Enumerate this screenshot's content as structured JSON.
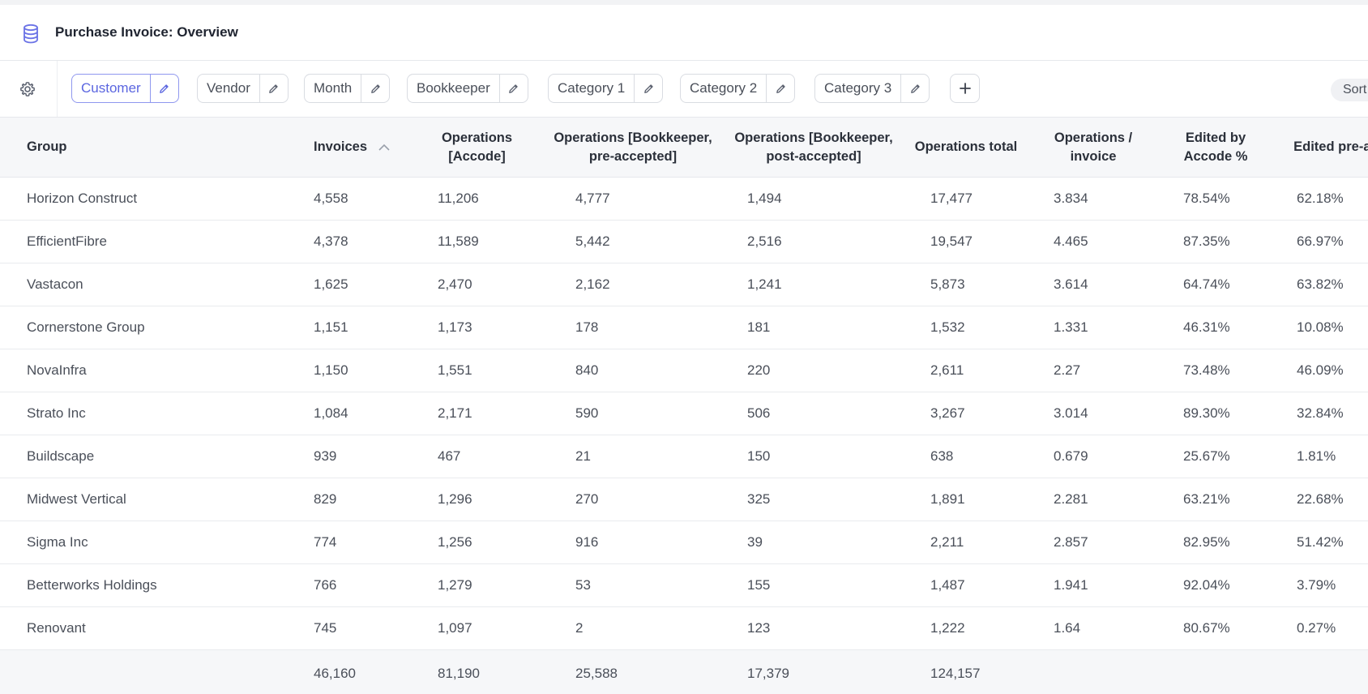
{
  "header": {
    "title": "Purchase Invoice: Overview",
    "icon": "database-icon"
  },
  "toolbar": {
    "settings_icon": "gear-icon",
    "groupings": [
      {
        "label": "Customer",
        "active": true
      },
      {
        "label": "Vendor",
        "active": false
      },
      {
        "label": "Month",
        "active": false
      },
      {
        "label": "Bookkeeper",
        "active": false
      },
      {
        "label": "Category 1",
        "active": false
      },
      {
        "label": "Category 2",
        "active": false
      },
      {
        "label": "Category 3",
        "active": false
      }
    ],
    "add_icon": "plus-icon",
    "sort_label": "Sort"
  },
  "table": {
    "columns": [
      "Group",
      "Invoices",
      "Operations [Accode]",
      "Operations [Bookkeeper, pre-accepted]",
      "Operations [Bookkeeper, post-accepted]",
      "Operations total",
      "Operations / invoice",
      "Edited by Accode %",
      "Edited pre-accepted"
    ],
    "sorted_column": "Invoices",
    "sort_direction": "ascending-arrow",
    "rows": [
      [
        "Horizon Construct",
        "4,558",
        "11,206",
        "4,777",
        "1,494",
        "17,477",
        "3.834",
        "78.54%",
        "62.18%"
      ],
      [
        "EfficientFibre",
        "4,378",
        "11,589",
        "5,442",
        "2,516",
        "19,547",
        "4.465",
        "87.35%",
        "66.97%"
      ],
      [
        "Vastacon",
        "1,625",
        "2,470",
        "2,162",
        "1,241",
        "5,873",
        "3.614",
        "64.74%",
        "63.82%"
      ],
      [
        "Cornerstone Group",
        "1,151",
        "1,173",
        "178",
        "181",
        "1,532",
        "1.331",
        "46.31%",
        "10.08%"
      ],
      [
        "NovaInfra",
        "1,150",
        "1,551",
        "840",
        "220",
        "2,611",
        "2.27",
        "73.48%",
        "46.09%"
      ],
      [
        "Strato Inc",
        "1,084",
        "2,171",
        "590",
        "506",
        "3,267",
        "3.014",
        "89.30%",
        "32.84%"
      ],
      [
        "Buildscape",
        "939",
        "467",
        "21",
        "150",
        "638",
        "0.679",
        "25.67%",
        "1.81%"
      ],
      [
        "Midwest Vertical",
        "829",
        "1,296",
        "270",
        "325",
        "1,891",
        "2.281",
        "63.21%",
        "22.68%"
      ],
      [
        "Sigma Inc",
        "774",
        "1,256",
        "916",
        "39",
        "2,211",
        "2.857",
        "82.95%",
        "51.42%"
      ],
      [
        "Betterworks Holdings",
        "766",
        "1,279",
        "53",
        "155",
        "1,487",
        "1.941",
        "92.04%",
        "3.79%"
      ],
      [
        "Renovant",
        "745",
        "1,097",
        "2",
        "123",
        "1,222",
        "1.64",
        "80.67%",
        "0.27%"
      ]
    ],
    "totals": [
      "",
      "46,160",
      "81,190",
      "25,588",
      "17,379",
      "124,157",
      "",
      "",
      ""
    ]
  }
}
